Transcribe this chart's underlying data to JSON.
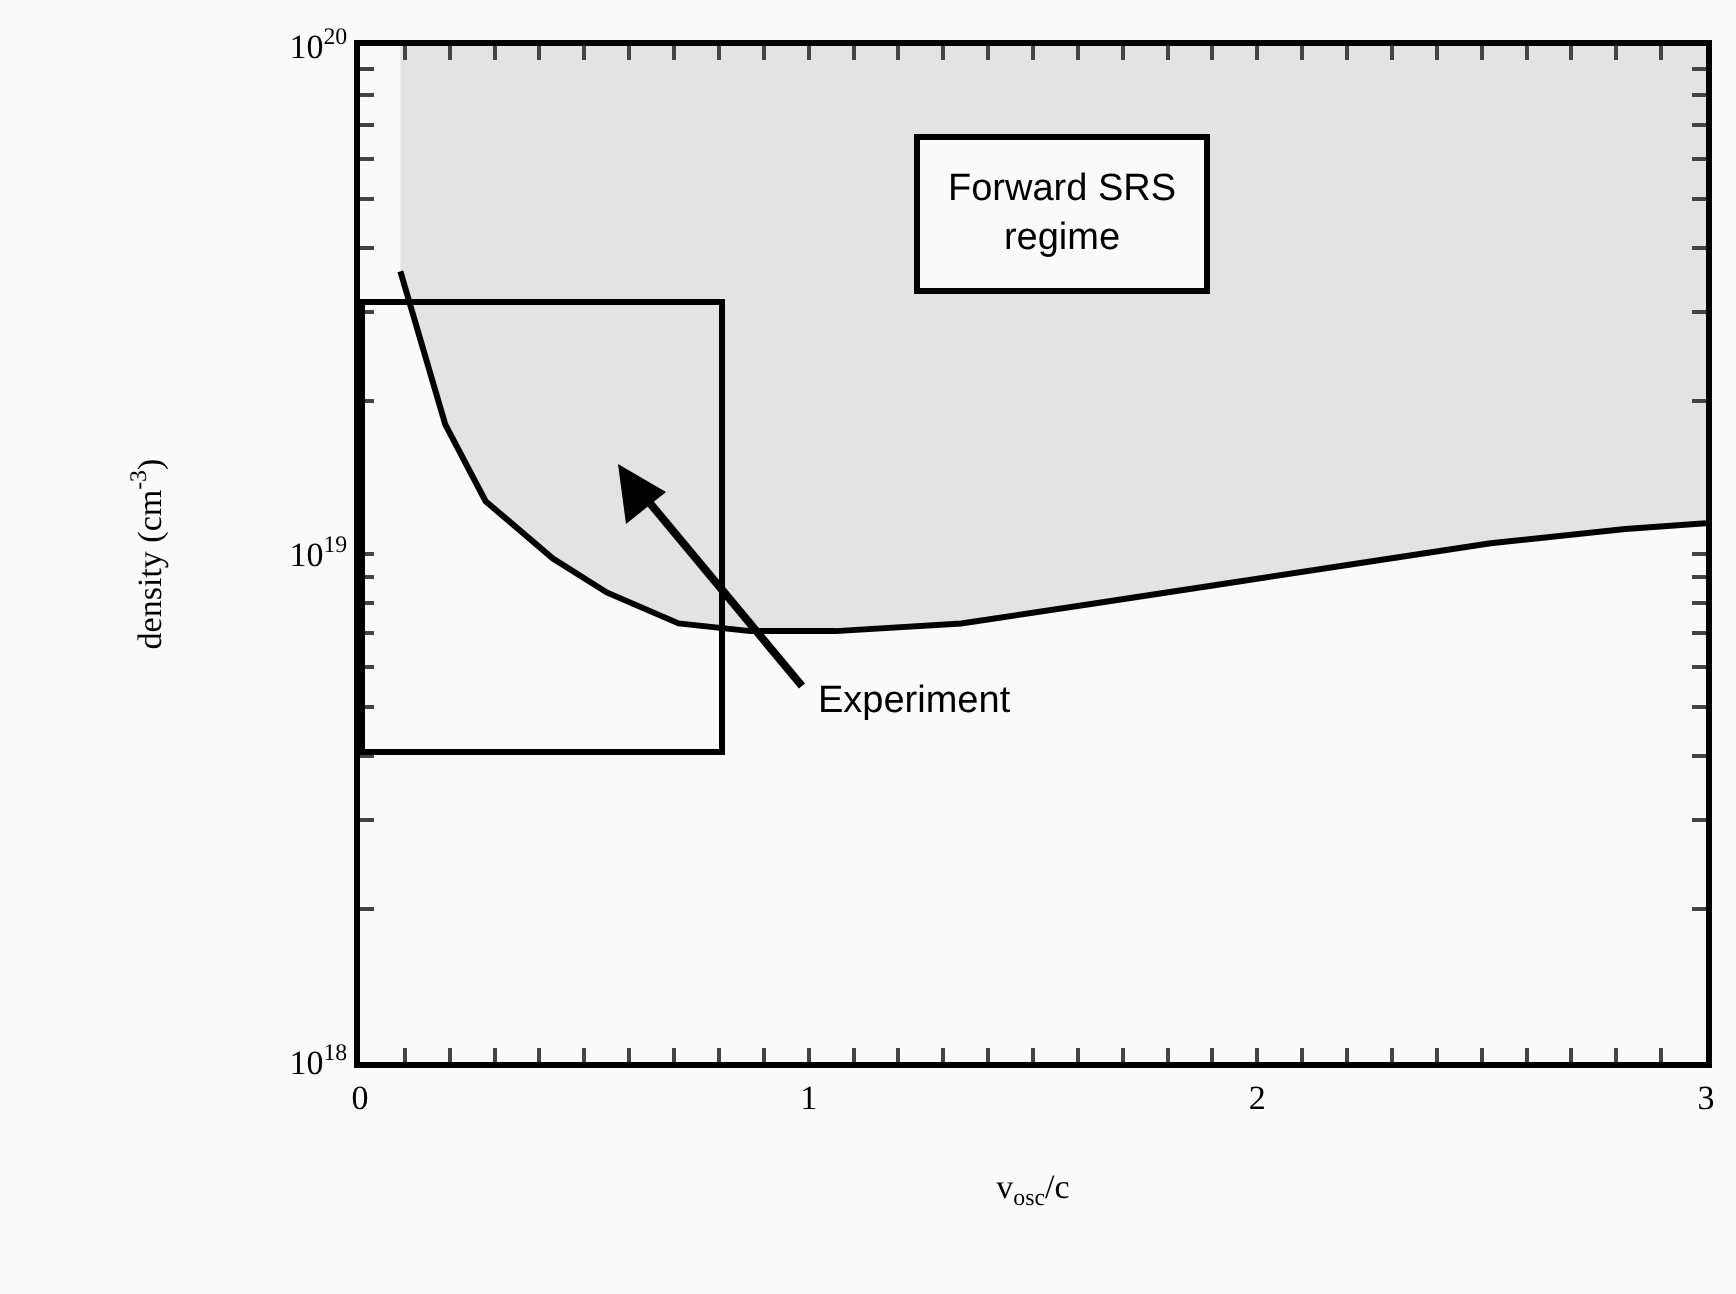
{
  "chart_data": {
    "type": "line",
    "xlabel": "v$_{osc}$/c",
    "ylabel": "density (cm$^{-3}$)",
    "log": "y",
    "grid": false,
    "marker": "none",
    "line_style": "solid",
    "xlim": [
      0,
      3
    ],
    "ylim": [
      1e+18,
      1e+20
    ],
    "xticks": [
      0,
      {
        "value": 0.1,
        "label": null
      },
      {
        "value": 0.2,
        "label": null
      },
      {
        "value": 0.3,
        "label": null
      },
      {
        "value": 0.4,
        "label": null
      },
      {
        "value": 0.5,
        "label": null
      },
      {
        "value": 0.6,
        "label": null
      },
      {
        "value": 0.7,
        "label": null
      },
      {
        "value": 0.8,
        "label": null
      },
      {
        "value": 0.9,
        "label": null
      },
      1,
      {
        "value": 1.1,
        "label": null
      },
      {
        "value": 1.2,
        "label": null
      },
      {
        "value": 1.3,
        "label": null
      },
      {
        "value": 1.4,
        "label": null
      },
      {
        "value": 1.5,
        "label": null
      },
      {
        "value": 1.6,
        "label": null
      },
      {
        "value": 1.7,
        "label": null
      },
      {
        "value": 1.8,
        "label": null
      },
      {
        "value": 1.9,
        "label": null
      },
      2,
      {
        "value": 2.1,
        "label": null
      },
      {
        "value": 2.2,
        "label": null
      },
      {
        "value": 2.3,
        "label": null
      },
      {
        "value": 2.4,
        "label": null
      },
      {
        "value": 2.5,
        "label": null
      },
      {
        "value": 2.6,
        "label": null
      },
      {
        "value": 2.7,
        "label": null
      },
      {
        "value": 2.8,
        "label": null
      },
      {
        "value": 2.9,
        "label": null
      },
      3
    ],
    "yticks": [
      {
        "value": 1e+18,
        "label": "10$^{18}$"
      },
      {
        "value": 2e+18,
        "label": null
      },
      {
        "value": 3e+18,
        "label": null
      },
      {
        "value": 4e+18,
        "label": null
      },
      {
        "value": 5e+18,
        "label": null
      },
      {
        "value": 6e+18,
        "label": null
      },
      {
        "value": 7e+18,
        "label": null
      },
      {
        "value": 8e+18,
        "label": null
      },
      {
        "value": 9e+18,
        "label": null
      },
      {
        "value": 1e+19,
        "label": "10$^{19}$"
      },
      {
        "value": 2e+19,
        "label": null
      },
      {
        "value": 3e+19,
        "label": null
      },
      {
        "value": 4e+19,
        "label": null
      },
      {
        "value": 5e+19,
        "label": null
      },
      {
        "value": 6e+19,
        "label": null
      },
      {
        "value": 7e+19,
        "label": null
      },
      {
        "value": 8e+19,
        "label": null
      },
      {
        "value": 9e+19,
        "label": null
      },
      {
        "value": 1e+20,
        "label": "10$^{20}$"
      }
    ],
    "series": [
      {
        "color": "#000000",
        "x": [
          0.09,
          0.19,
          0.28,
          0.43,
          0.55,
          0.71,
          0.87,
          1.06,
          1.34,
          1.64,
          1.93,
          2.23,
          2.52,
          2.82,
          3
        ],
        "values": [
          3.6e+19,
          1.8e+19,
          1.27e+19,
          9.8e+18,
          8.4e+18,
          7.3e+18,
          7.05e+18,
          7.05e+18,
          7.3e+18,
          8e+18,
          8.75e+18,
          9.6e+18,
          1.05e+19,
          1.12e+19,
          1.15e+19
        ],
        "lower": [
          3.6e+19,
          1.8e+19,
          1.27e+19,
          9.8e+18,
          8.4e+18,
          7.3e+18,
          7.05e+18,
          7.05e+18,
          7.3e+18,
          8e+18,
          8.75e+18,
          9.6e+18,
          1.05e+19,
          1.12e+19,
          1.15e+19
        ],
        "upper": [
          1e+20,
          1e+20,
          1e+20,
          1e+20,
          1e+20,
          1e+20,
          1e+20,
          1e+20,
          1e+20,
          1e+20,
          1e+20,
          1e+20,
          1e+20,
          1e+20,
          1e+20
        ]
      }
    ],
    "annotations": [
      "Forward SRS\nregime",
      "Experiment"
    ]
  }
}
